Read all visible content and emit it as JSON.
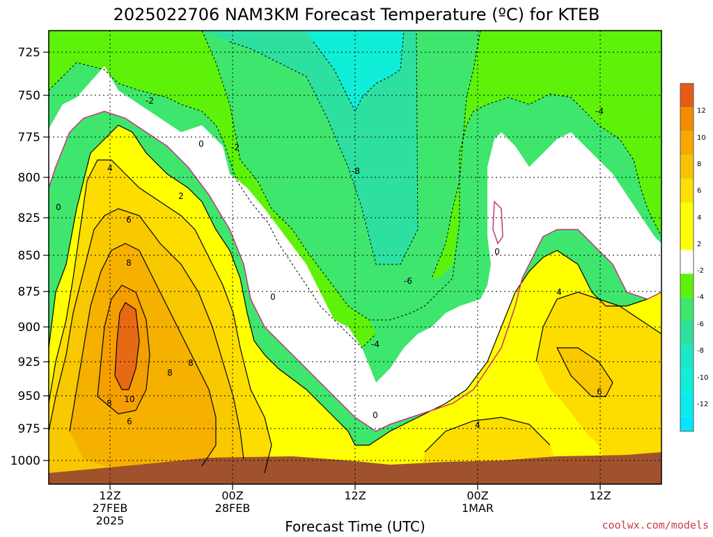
{
  "chart_data": {
    "type": "contour",
    "title": "2025022706 NAM3KM Forecast Temperature (ºC) for KTEB",
    "xlabel": "Forecast Time (UTC)",
    "ylabel": "",
    "y_scale": "pressure (hPa), inverted",
    "ylim": [
      1015,
      710
    ],
    "y_ticks": [
      "725",
      "750",
      "775",
      "800",
      "825",
      "850",
      "875",
      "900",
      "925",
      "950",
      "975",
      "1000"
    ],
    "x_ticks": [
      {
        "line1": "12Z",
        "line2": "27FEB",
        "line3": "2025"
      },
      {
        "line1": "00Z",
        "line2": "28FEB",
        "line3": ""
      },
      {
        "line1": "12Z",
        "line2": "",
        "line3": ""
      },
      {
        "line1": "00Z",
        "line2": "1MAR",
        "line3": ""
      },
      {
        "line1": "12Z",
        "line2": "",
        "line3": ""
      }
    ],
    "grid": true,
    "contour_labels": [
      "-2",
      "0",
      "-2",
      "0",
      "4",
      "2",
      "6",
      "8",
      "8",
      "10",
      "8",
      "6",
      "8",
      "-8",
      "0",
      "-4",
      "0",
      "-6",
      "0",
      "4",
      "4",
      "6",
      "-4"
    ],
    "colorbar": {
      "ticks": [
        "12",
        "10",
        "8",
        "6",
        "4",
        "2",
        "-2",
        "-4",
        "-6",
        "-8",
        "-10",
        "-12"
      ],
      "colors": [
        "#e65c14",
        "#f28c00",
        "#f5a800",
        "#f7c300",
        "#fbe000",
        "#ffff00",
        "#ffffff",
        "#5ef20a",
        "#3ee66e",
        "#30e0a8",
        "#18eee0",
        "#00e8ff"
      ]
    },
    "fill_colors": {
      "warm14": "#e66a14",
      "warm12": "#f28c00",
      "warm10": "#f59e00",
      "warm8": "#f5b000",
      "warm6": "#f8c800",
      "warm4": "#fddd00",
      "warm2": "#ffff00",
      "neutral": "#ffffff",
      "cold2": "#5ef20a",
      "cold4": "#3ee66e",
      "cold6": "#2ee0a0",
      "cold8": "#10eed8",
      "ground": "#a0522d",
      "zero_line": "#c8327a"
    }
  },
  "credit": "coolwx.com/models"
}
